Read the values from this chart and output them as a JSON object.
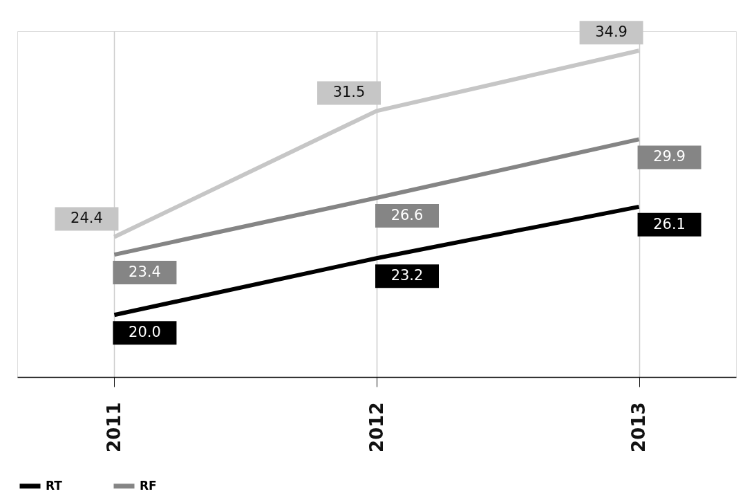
{
  "chart_data": {
    "type": "line",
    "categories": [
      "2011",
      "2012",
      "2013"
    ],
    "series": [
      {
        "name": "RT",
        "color": "#000000",
        "values": [
          20.0,
          23.2,
          26.1
        ],
        "value_labels": [
          "20.0",
          "23.2",
          "26.1"
        ]
      },
      {
        "name": "RF",
        "color": "#858585",
        "values": [
          23.4,
          26.6,
          29.9
        ],
        "value_labels": [
          "23.4",
          "26.6",
          "29.9"
        ]
      },
      {
        "color": "#c6c6c6",
        "values": [
          24.4,
          31.5,
          34.9
        ],
        "value_labels": [
          "24.4",
          "31.5",
          "34.9"
        ]
      }
    ],
    "ylim": [
      16.5,
      36
    ],
    "grid": "x",
    "legend": "bottom left",
    "tick_labels": "x",
    "marker": "none",
    "line_style": "solid"
  }
}
